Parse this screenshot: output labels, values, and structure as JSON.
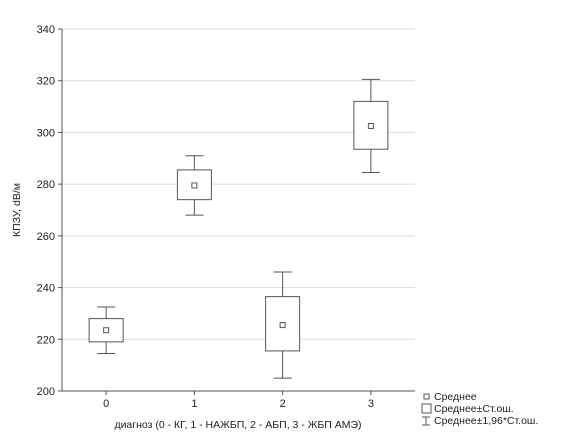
{
  "chart_data": {
    "type": "box",
    "xlabel": "диагноз (0 - КГ, 1 - НАЖБП, 2 - АБП, 3 - ЖБП АМЭ)",
    "ylabel": "КПЗУ, dB/м",
    "ylim": [
      200,
      340
    ],
    "yticks": [
      200,
      220,
      240,
      260,
      280,
      300,
      320,
      340
    ],
    "categories": [
      "0",
      "1",
      "2",
      "3"
    ],
    "grid": "horizontal",
    "legend_position": "bottom-right",
    "legend": {
      "mean": "Среднее",
      "se_box": "Среднее±Ст.ош.",
      "ci_whisker": "Среднее±1,96*Ст.ош."
    },
    "boxes": [
      {
        "category": "0",
        "mean": 223.5,
        "se_low": 219,
        "se_high": 228,
        "ci_low": 214.5,
        "ci_high": 232.5
      },
      {
        "category": "1",
        "mean": 279.5,
        "se_low": 274,
        "se_high": 285.5,
        "ci_low": 268,
        "ci_high": 291
      },
      {
        "category": "2",
        "mean": 225.5,
        "se_low": 215.5,
        "se_high": 236.5,
        "ci_low": 205,
        "ci_high": 246
      },
      {
        "category": "3",
        "mean": 302.5,
        "se_low": 293.5,
        "se_high": 312,
        "ci_low": 284.5,
        "ci_high": 320.5
      }
    ],
    "colors": {
      "line": "#555555",
      "grid": "#d9d9d9",
      "box_fill": "#ffffff"
    }
  }
}
